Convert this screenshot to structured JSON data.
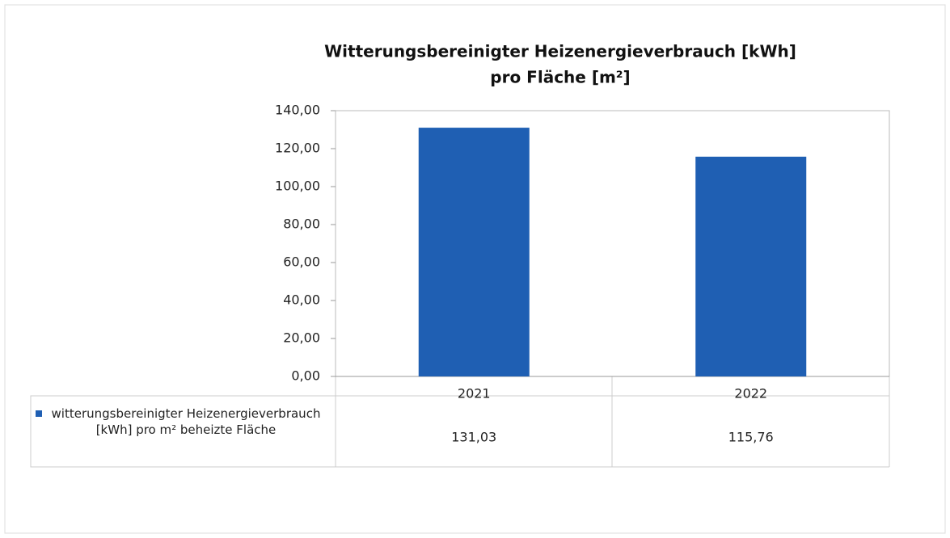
{
  "chart_data": {
    "type": "bar",
    "title": [
      "Witterungsbereinigter Heizenergieverbrauch [kWh]",
      "pro Fläche [m²]"
    ],
    "categories": [
      "2021",
      "2022"
    ],
    "series": [
      {
        "name": "witterungsbereinigter Heizenergieverbrauch [kWh] pro m² beheizte Fläche",
        "color": "#1f5fb3",
        "values": [
          131.03,
          115.76
        ],
        "value_labels": [
          "131,03",
          "115,76"
        ]
      }
    ],
    "ylim": [
      0,
      140
    ],
    "yticks": [
      {
        "value": 0,
        "label": "0,00"
      },
      {
        "value": 20,
        "label": "20,00"
      },
      {
        "value": 40,
        "label": "40,00"
      },
      {
        "value": 60,
        "label": "60,00"
      },
      {
        "value": 80,
        "label": "80,00"
      },
      {
        "value": 100,
        "label": "100,00"
      },
      {
        "value": 120,
        "label": "120,00"
      },
      {
        "value": 140,
        "label": "140,00"
      }
    ],
    "grid": false
  }
}
